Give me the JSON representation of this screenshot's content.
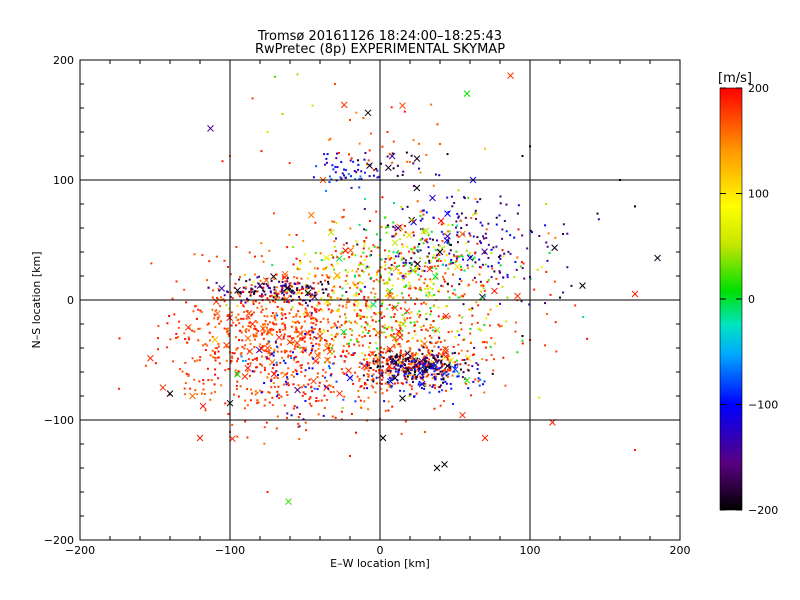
{
  "chart_data": {
    "type": "scatter",
    "title": "Tromsø 20161126 18:24:00–18:25:43",
    "subtitle": "RwPretec (8p) EXPERIMENTAL SKYMAP",
    "xlabel": "E–W location [km]",
    "ylabel": "N–S location [km]",
    "xlim": [
      -200,
      200
    ],
    "ylim": [
      -200,
      200
    ],
    "xticks": [
      "−200",
      "−100",
      "0",
      "100",
      "200"
    ],
    "yticks": [
      "−200",
      "−100",
      "0",
      "100",
      "200"
    ],
    "grid": true,
    "grid_lines": [
      -100,
      0,
      100
    ],
    "colorbar": {
      "label": "[m/s]",
      "range": [
        -200,
        200
      ],
      "ticks": [
        "−200",
        "−100",
        "0",
        "100",
        "200"
      ],
      "colormap": [
        "#000000",
        "#5a0080",
        "#0000ff",
        "#00aaff",
        "#00e5c0",
        "#00e000",
        "#c8e600",
        "#ffff00",
        "#ff9900",
        "#ff0000"
      ]
    },
    "markers": {
      "small": "dot",
      "large": "x"
    },
    "points": [
      {
        "x": 170,
        "y": 5,
        "v": 190,
        "s": "x"
      },
      {
        "x": 135,
        "y": 12,
        "v": -200,
        "s": "x"
      },
      {
        "x": 185,
        "y": 35,
        "v": -190,
        "s": "x"
      },
      {
        "x": 87,
        "y": 187,
        "v": 180,
        "s": "x"
      },
      {
        "x": 58,
        "y": 172,
        "v": 10,
        "s": "x"
      },
      {
        "x": 15,
        "y": 162,
        "v": 170,
        "s": "x"
      },
      {
        "x": -8,
        "y": 156,
        "v": -200,
        "s": "x"
      },
      {
        "x": -113,
        "y": 143,
        "v": -150,
        "s": "x"
      },
      {
        "x": -7,
        "y": 112,
        "v": -190,
        "s": "x"
      },
      {
        "x": -38,
        "y": 100,
        "v": 170,
        "s": "x"
      },
      {
        "x": 62,
        "y": 100,
        "v": -110,
        "s": "x"
      },
      {
        "x": 35,
        "y": 85,
        "v": -120,
        "s": "x"
      },
      {
        "x": 45,
        "y": 72,
        "v": -100,
        "s": "x"
      },
      {
        "x": 55,
        "y": 55,
        "v": 160,
        "s": "x"
      },
      {
        "x": 40,
        "y": 40,
        "v": -190,
        "s": "x"
      },
      {
        "x": 25,
        "y": 30,
        "v": -190,
        "s": "x"
      },
      {
        "x": 60,
        "y": 35,
        "v": -120,
        "s": "x"
      },
      {
        "x": 12,
        "y": 60,
        "v": -150,
        "s": "x"
      },
      {
        "x": -80,
        "y": 12,
        "v": -170,
        "s": "x"
      },
      {
        "x": -62,
        "y": 10,
        "v": -190,
        "s": "x"
      },
      {
        "x": -48,
        "y": 6,
        "v": -200,
        "s": "x"
      },
      {
        "x": -95,
        "y": 8,
        "v": -190,
        "s": "x"
      },
      {
        "x": -85,
        "y": -20,
        "v": 180,
        "s": "x"
      },
      {
        "x": -60,
        "y": -35,
        "v": 170,
        "s": "x"
      },
      {
        "x": -110,
        "y": -33,
        "v": 120,
        "s": "x"
      },
      {
        "x": -95,
        "y": -62,
        "v": 10,
        "s": "x"
      },
      {
        "x": -125,
        "y": -80,
        "v": 160,
        "s": "x"
      },
      {
        "x": -140,
        "y": -78,
        "v": -200,
        "s": "x"
      },
      {
        "x": -100,
        "y": -86,
        "v": -200,
        "s": "x"
      },
      {
        "x": -120,
        "y": -115,
        "v": 190,
        "s": "x"
      },
      {
        "x": -61,
        "y": -168,
        "v": 20,
        "s": "x"
      },
      {
        "x": 2,
        "y": -115,
        "v": -200,
        "s": "x"
      },
      {
        "x": 38,
        "y": -140,
        "v": -200,
        "s": "x"
      },
      {
        "x": 43,
        "y": -137,
        "v": -200,
        "s": "x"
      },
      {
        "x": 70,
        "y": -115,
        "v": 190,
        "s": "x"
      },
      {
        "x": 115,
        "y": -102,
        "v": 190,
        "s": "x"
      },
      {
        "x": 55,
        "y": -96,
        "v": 190,
        "s": "x"
      },
      {
        "x": 58,
        "y": -67,
        "v": 20,
        "s": "x"
      },
      {
        "x": 15,
        "y": -82,
        "v": -200,
        "s": "x"
      },
      {
        "x": 28,
        "y": -70,
        "v": -120,
        "s": "x"
      },
      {
        "x": 10,
        "y": -65,
        "v": -190,
        "s": "x"
      },
      {
        "x": -20,
        "y": -65,
        "v": -100,
        "s": "x"
      },
      {
        "x": -35,
        "y": -50,
        "v": 160,
        "s": "x"
      },
      {
        "x": -5,
        "y": -45,
        "v": 170,
        "s": "x"
      },
      {
        "x": 45,
        "y": -55,
        "v": -200,
        "s": "x"
      },
      {
        "x": 30,
        "y": -58,
        "v": -200,
        "s": "x"
      },
      {
        "x": -75,
        "y": -40,
        "v": 170,
        "s": "x"
      },
      {
        "x": -40,
        "y": -30,
        "v": 180,
        "s": "x"
      },
      {
        "x": -55,
        "y": -75,
        "v": -160,
        "s": "x"
      },
      {
        "x": -88,
        "y": -32,
        "v": 160,
        "s": "x"
      },
      {
        "x": 170,
        "y": -125,
        "v": 190,
        "s": "dot"
      },
      {
        "x": 160,
        "y": 100,
        "v": -200,
        "s": "dot"
      },
      {
        "x": 170,
        "y": 78,
        "v": -200,
        "s": "dot"
      },
      {
        "x": 145,
        "y": 72,
        "v": -190,
        "s": "dot"
      },
      {
        "x": 122,
        "y": 55,
        "v": -180,
        "s": "dot"
      },
      {
        "x": 100,
        "y": 128,
        "v": -200,
        "s": "dot"
      },
      {
        "x": 95,
        "y": 120,
        "v": -200,
        "s": "dot"
      },
      {
        "x": 120,
        "y": 2,
        "v": -200,
        "s": "dot"
      },
      {
        "x": 95,
        "y": -30,
        "v": -200,
        "s": "dot"
      },
      {
        "x": -174,
        "y": -74,
        "v": 180,
        "s": "dot"
      },
      {
        "x": -70,
        "y": 186,
        "v": 20,
        "s": "dot"
      },
      {
        "x": -55,
        "y": 188,
        "v": 40,
        "s": "dot"
      },
      {
        "x": -65,
        "y": 155,
        "v": 40,
        "s": "dot"
      },
      {
        "x": -75,
        "y": 140,
        "v": 60,
        "s": "dot"
      },
      {
        "x": -85,
        "y": 168,
        "v": 180,
        "s": "dot"
      },
      {
        "x": -100,
        "y": 120,
        "v": 160,
        "s": "dot"
      },
      {
        "x": -30,
        "y": 180,
        "v": 170,
        "s": "dot"
      },
      {
        "x": -20,
        "y": 150,
        "v": 180,
        "s": "dot"
      },
      {
        "x": -45,
        "y": 162,
        "v": 50,
        "s": "dot"
      },
      {
        "x": 5,
        "y": 140,
        "v": 180,
        "s": "dot"
      },
      {
        "x": 70,
        "y": 126,
        "v": 120,
        "s": "dot"
      },
      {
        "x": 40,
        "y": 130,
        "v": 170,
        "s": "dot"
      },
      {
        "x": 20,
        "y": 115,
        "v": 150,
        "s": "dot"
      },
      {
        "x": -75,
        "y": -160,
        "v": 190,
        "s": "dot"
      },
      {
        "x": -20,
        "y": -130,
        "v": 190,
        "s": "dot"
      },
      {
        "x": 30,
        "y": -110,
        "v": 170,
        "s": "dot"
      },
      {
        "x": -100,
        "y": -110,
        "v": 180,
        "s": "dot"
      }
    ],
    "clusters": [
      {
        "cx": -22,
        "cy": 108,
        "sx": 10,
        "sy": 6,
        "n": 45,
        "vmin": -150,
        "vmax": -60,
        "seed": 11
      },
      {
        "cx": 5,
        "cy": 110,
        "sx": 14,
        "sy": 8,
        "n": 25,
        "vmin": -200,
        "vmax": -120,
        "seed": 12
      },
      {
        "cx": 45,
        "cy": 45,
        "sx": 30,
        "sy": 22,
        "n": 170,
        "vmin": -200,
        "vmax": -90,
        "seed": 13
      },
      {
        "cx": 15,
        "cy": 35,
        "sx": 28,
        "sy": 22,
        "n": 150,
        "vmin": -20,
        "vmax": 110,
        "seed": 14
      },
      {
        "cx": 5,
        "cy": 20,
        "sx": 45,
        "sy": 30,
        "n": 260,
        "vmin": 140,
        "vmax": 200,
        "seed": 15
      },
      {
        "cx": -25,
        "cy": 5,
        "sx": 30,
        "sy": 18,
        "n": 120,
        "vmin": 30,
        "vmax": 130,
        "seed": 16
      },
      {
        "cx": -70,
        "cy": 8,
        "sx": 22,
        "sy": 6,
        "n": 130,
        "vmin": -200,
        "vmax": -130,
        "seed": 17
      },
      {
        "cx": -80,
        "cy": -20,
        "sx": 28,
        "sy": 22,
        "n": 340,
        "vmin": 150,
        "vmax": 200,
        "seed": 18
      },
      {
        "cx": -40,
        "cy": -50,
        "sx": 38,
        "sy": 28,
        "n": 260,
        "vmin": 150,
        "vmax": 200,
        "seed": 19
      },
      {
        "cx": -55,
        "cy": -55,
        "sx": 25,
        "sy": 18,
        "n": 70,
        "vmin": -140,
        "vmax": -60,
        "seed": 20
      },
      {
        "cx": 20,
        "cy": -55,
        "sx": 20,
        "sy": 9,
        "n": 230,
        "vmin": 150,
        "vmax": 200,
        "seed": 21
      },
      {
        "cx": 25,
        "cy": -55,
        "sx": 16,
        "sy": 7,
        "n": 200,
        "vmin": -200,
        "vmax": -150,
        "seed": 22
      },
      {
        "cx": 30,
        "cy": -62,
        "sx": 18,
        "sy": 10,
        "n": 90,
        "vmin": -130,
        "vmax": -70,
        "seed": 23
      },
      {
        "cx": 10,
        "cy": -35,
        "sx": 35,
        "sy": 20,
        "n": 130,
        "vmin": 0,
        "vmax": 200,
        "seed": 24
      },
      {
        "cx": 0,
        "cy": -20,
        "sx": 60,
        "sy": 35,
        "n": 200,
        "vmin": 160,
        "vmax": 200,
        "seed": 25
      },
      {
        "cx": -70,
        "cy": -80,
        "sx": 30,
        "sy": 20,
        "n": 90,
        "vmin": 160,
        "vmax": 200,
        "seed": 26
      },
      {
        "cx": -120,
        "cy": -50,
        "sx": 20,
        "sy": 18,
        "n": 40,
        "vmin": 150,
        "vmax": 200,
        "seed": 27
      },
      {
        "cx": 80,
        "cy": 40,
        "sx": 28,
        "sy": 30,
        "n": 45,
        "vmin": -200,
        "vmax": -100,
        "seed": 28
      },
      {
        "cx": -5,
        "cy": 130,
        "sx": 30,
        "sy": 20,
        "n": 30,
        "vmin": 140,
        "vmax": 200,
        "seed": 29
      },
      {
        "cx": 40,
        "cy": 20,
        "sx": 40,
        "sy": 30,
        "n": 80,
        "vmin": -20,
        "vmax": 60,
        "seed": 30
      }
    ]
  }
}
